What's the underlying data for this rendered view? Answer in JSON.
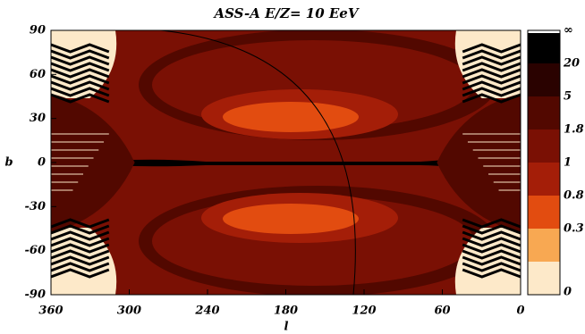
{
  "chart_data": {
    "type": "contour",
    "title": "ASS-A   E/Z= 10 EeV",
    "x_label": "l",
    "y_label": "b",
    "xlim": [
      360,
      0
    ],
    "xticks": [
      360,
      300,
      240,
      180,
      120,
      60,
      0
    ],
    "ylim": [
      -90,
      90
    ],
    "yticks": [
      90,
      60,
      30,
      0,
      -30,
      -60,
      -90
    ],
    "colorbar": {
      "labels": [
        "∞",
        "20",
        "5",
        "1.8",
        "1",
        "0.8",
        "0.3",
        "0"
      ],
      "colors": [
        "#000000",
        "#2a0200",
        "#520800",
        "#7a1004",
        "#a41e08",
        "#e24c10",
        "#f8a852",
        "#fde9c9"
      ]
    }
  }
}
